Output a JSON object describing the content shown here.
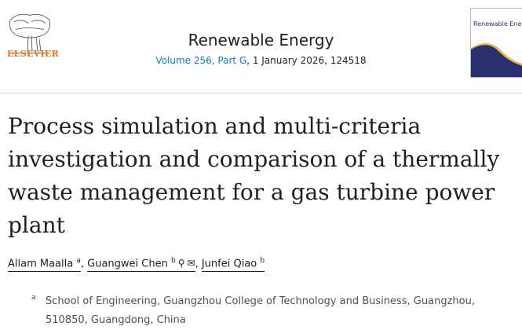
{
  "publisher": {
    "name": "ELSEVIER"
  },
  "journal": {
    "title": "Renewable Energy",
    "volume_link": "Volume 256, Part G",
    "issue_rest": ", 1 January 2026, 124518",
    "cover_title": "Renewable Energy",
    "colors": {
      "cover_navy": "#2a2f6e",
      "cover_gold": "#e9b44c"
    }
  },
  "article": {
    "title": "Process simulation and multi-criteria investigation and comparison of a thermally waste management for a gas turbine power plant"
  },
  "authors": [
    {
      "name": "Allam Maalla",
      "sup": "a"
    },
    {
      "name": "Guangwei Chen",
      "sup": "b",
      "icons": [
        "person-icon",
        "email-icon"
      ]
    },
    {
      "name": "Junfei Qiao",
      "sup": "b"
    }
  ],
  "affiliations": [
    {
      "label": "a",
      "text": "School of Engineering, Guangzhou College of Technology and Business, Guangzhou, 510850, Guangdong, China"
    }
  ],
  "colors": {
    "link": "#0c7dbb",
    "elsevier_orange": "#e9711c"
  }
}
